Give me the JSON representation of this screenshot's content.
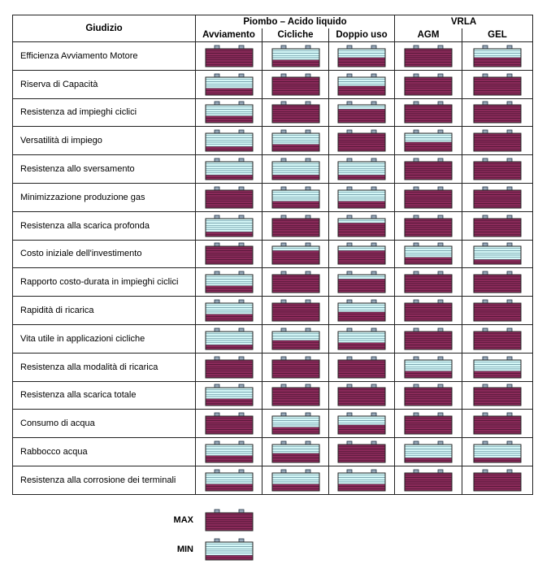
{
  "header": {
    "judgement": "Giudizio",
    "group1": "Piombo – Acido liquido",
    "group2": "VRLA",
    "columns": [
      "Avviamento",
      "Cicliche",
      "Doppio uso",
      "AGM",
      "GEL"
    ]
  },
  "rows": [
    {
      "label": "Efficienza Avviamento Motore",
      "levels": [
        5,
        2,
        3,
        5,
        3
      ]
    },
    {
      "label": "Riserva di Capacità",
      "levels": [
        2,
        5,
        3,
        5,
        5
      ]
    },
    {
      "label": "Resistenza ad impieghi ciclici",
      "levels": [
        2,
        5,
        4,
        5,
        5
      ]
    },
    {
      "label": "Versatilità di impiego",
      "levels": [
        1,
        2,
        5,
        3,
        5
      ]
    },
    {
      "label": "Resistenza allo sversamento",
      "levels": [
        1,
        1,
        1,
        5,
        5
      ]
    },
    {
      "label": "Minimizzazione produzione gas",
      "levels": [
        5,
        2,
        2,
        5,
        5
      ]
    },
    {
      "label": "Resistenza alla scarica profonda",
      "levels": [
        1,
        5,
        4,
        5,
        5
      ]
    },
    {
      "label": "Costo iniziale dell'investimento",
      "levels": [
        5,
        4,
        4,
        2,
        1
      ]
    },
    {
      "label": "Rapporto costo-durata in impieghi ciclici",
      "levels": [
        2,
        5,
        4,
        5,
        5
      ]
    },
    {
      "label": "Rapidità di ricarica",
      "levels": [
        2,
        5,
        3,
        5,
        5
      ]
    },
    {
      "label": "Vita utile in applicazioni cicliche",
      "levels": [
        1,
        3,
        2,
        5,
        5
      ]
    },
    {
      "label": "Resistenza alla modalità di ricarica",
      "levels": [
        5,
        5,
        5,
        2,
        2
      ]
    },
    {
      "label": "Resistenza alla scarica totale",
      "levels": [
        2,
        5,
        5,
        5,
        5
      ]
    },
    {
      "label": "Consumo di acqua",
      "levels": [
        5,
        2,
        3,
        5,
        5
      ]
    },
    {
      "label": "Rabbocco acqua",
      "levels": [
        2,
        3,
        5,
        1,
        1
      ]
    },
    {
      "label": "Resistenza alla corrosione dei terminali",
      "levels": [
        2,
        2,
        2,
        5,
        5
      ]
    }
  ],
  "legend": [
    {
      "label": "MAX",
      "level": 5
    },
    {
      "label": "MIN",
      "level": 1
    }
  ]
}
